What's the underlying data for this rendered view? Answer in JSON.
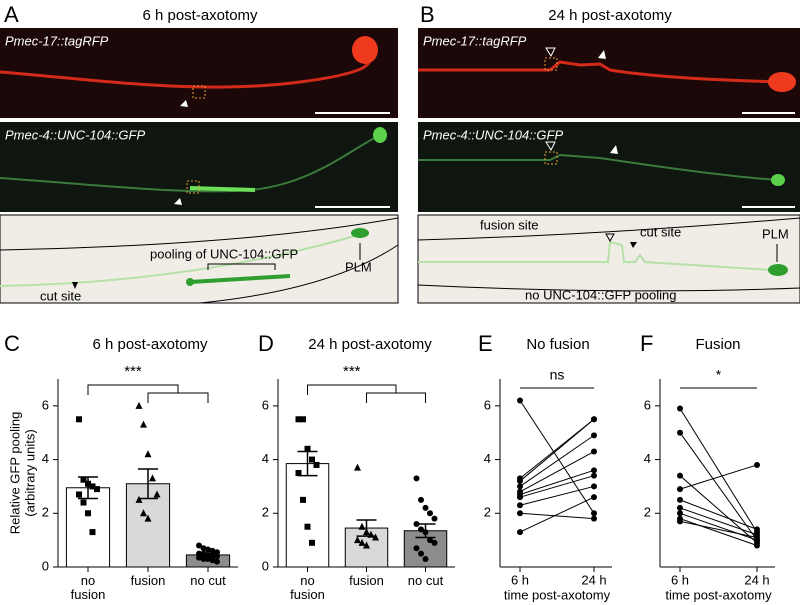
{
  "panels": [
    {
      "letter": "A",
      "title": "6 h post-axotomy",
      "image_labels": [
        "Pmec-17::tagRFP",
        "Pmec-4::UNC-104::GFP"
      ],
      "diagram_labels": [
        "pooling of UNC-104::GFP",
        "cut site",
        "PLM"
      ]
    },
    {
      "letter": "B",
      "title": "24 h post-axotomy",
      "image_labels": [
        "Pmec-17::tagRFP",
        "Pmec-4::UNC-104::GFP"
      ],
      "diagram_labels": [
        "fusion site",
        "cut site",
        "PLM",
        "no UNC-104::GFP pooling"
      ]
    }
  ],
  "chart_data": [
    {
      "type": "bar",
      "panel": "C",
      "title": "6 h post-axotomy",
      "ylabel": [
        "Relative GFP pooling",
        "(arbitrary units)"
      ],
      "categories": [
        "no fusion",
        "fusion",
        "no cut"
      ],
      "values": [
        2.95,
        3.1,
        0.45
      ],
      "errors": [
        0.4,
        0.55,
        0.05
      ],
      "colors": [
        "#ffffff",
        "#d9d9d9",
        "#8c8c8c"
      ],
      "markers": [
        "square",
        "triangle",
        "circle"
      ],
      "points": [
        [
          5.5,
          3.25,
          3.1,
          3.0,
          2.9,
          2.7,
          2.4,
          2.0,
          1.3
        ],
        [
          6.0,
          5.3,
          4.2,
          3.3,
          2.7,
          2.5,
          2.0,
          1.8
        ],
        [
          0.8,
          0.7,
          0.65,
          0.6,
          0.55,
          0.5,
          0.5,
          0.45,
          0.4,
          0.4,
          0.35,
          0.3,
          0.3,
          0.25,
          0.2
        ]
      ],
      "annotation": "***",
      "ylim": [
        0,
        7
      ],
      "yticks": [
        0,
        2,
        4,
        6
      ]
    },
    {
      "type": "bar",
      "panel": "D",
      "title": "24 h post-axotomy",
      "categories": [
        "no fusion",
        "fusion",
        "no cut"
      ],
      "values": [
        3.85,
        1.45,
        1.35
      ],
      "errors": [
        0.45,
        0.3,
        0.25
      ],
      "colors": [
        "#ffffff",
        "#d9d9d9",
        "#8c8c8c"
      ],
      "markers": [
        "square",
        "triangle",
        "circle"
      ],
      "points": [
        [
          5.5,
          5.5,
          4.4,
          4.0,
          3.8,
          3.5,
          2.5,
          1.5,
          0.9
        ],
        [
          3.7,
          1.5,
          1.3,
          1.2,
          1.1,
          1.0,
          0.9,
          0.8
        ],
        [
          3.3,
          2.5,
          2.2,
          2.0,
          1.8,
          1.6,
          1.4,
          1.3,
          1.0,
          0.9,
          0.7,
          0.5,
          0.3
        ]
      ],
      "annotation": "***",
      "ylim": [
        0,
        7
      ],
      "yticks": [
        0,
        2,
        4,
        6
      ]
    },
    {
      "type": "line",
      "panel": "E",
      "title": "No fusion",
      "categories": [
        "6 h",
        "24 h"
      ],
      "xlabel": "time post-axotomy",
      "color": "#000000",
      "annotation": "ns",
      "ylim": [
        0,
        7
      ],
      "yticks": [
        2,
        4,
        6
      ],
      "series": [
        {
          "values": [
            6.2,
            2.0
          ]
        },
        {
          "values": [
            3.3,
            5.5
          ]
        },
        {
          "values": [
            3.2,
            5.5
          ]
        },
        {
          "values": [
            3.0,
            4.9
          ]
        },
        {
          "values": [
            2.8,
            4.3
          ]
        },
        {
          "values": [
            2.7,
            3.6
          ]
        },
        {
          "values": [
            2.6,
            3.4
          ]
        },
        {
          "values": [
            2.3,
            3.0
          ]
        },
        {
          "values": [
            2.0,
            1.8
          ]
        },
        {
          "values": [
            1.3,
            2.6
          ]
        }
      ]
    },
    {
      "type": "line",
      "panel": "F",
      "title": "Fusion",
      "categories": [
        "6 h",
        "24 h"
      ],
      "xlabel": "time post-axotomy",
      "color": "#000000",
      "annotation": "*",
      "ylim": [
        0,
        7
      ],
      "yticks": [
        2,
        4,
        6
      ],
      "series": [
        {
          "values": [
            5.9,
            1.3
          ]
        },
        {
          "values": [
            5.0,
            1.0
          ]
        },
        {
          "values": [
            3.4,
            0.9
          ]
        },
        {
          "values": [
            2.9,
            3.8
          ]
        },
        {
          "values": [
            2.5,
            1.4
          ]
        },
        {
          "values": [
            2.2,
            1.2
          ]
        },
        {
          "values": [
            2.0,
            1.0
          ]
        },
        {
          "values": [
            1.8,
            0.8
          ]
        },
        {
          "values": [
            1.7,
            1.1
          ]
        }
      ]
    }
  ]
}
